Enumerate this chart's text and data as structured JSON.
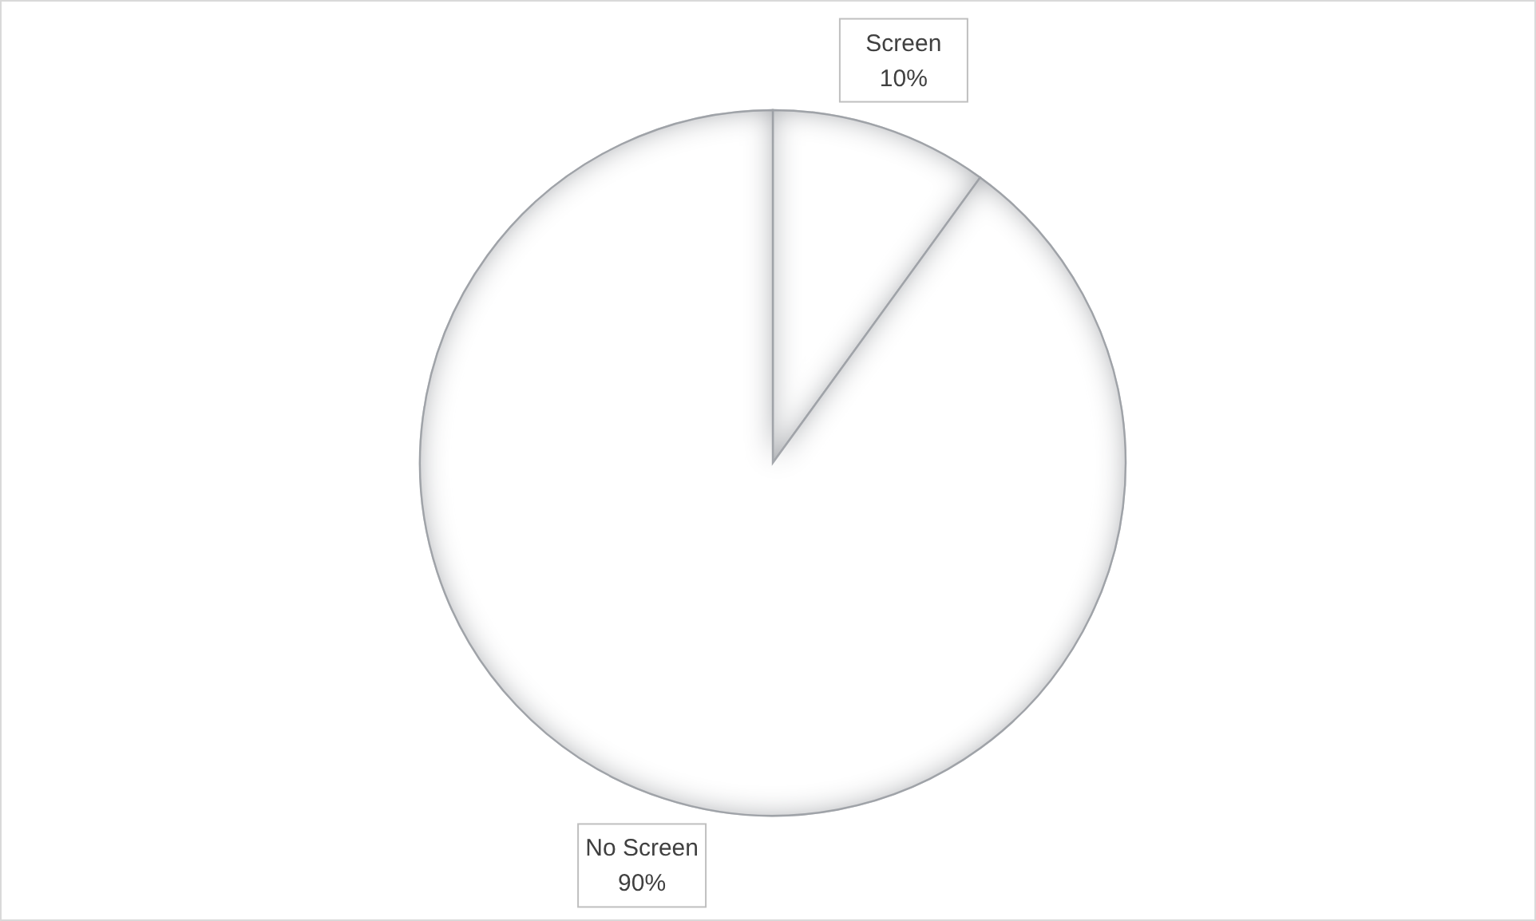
{
  "chart_data": {
    "type": "pie",
    "categories": [
      "Screen",
      "No Screen"
    ],
    "values": [
      10,
      90
    ],
    "colors": [
      "#ffffff",
      "#ffffff"
    ],
    "value_labels": [
      "10%",
      "90%"
    ]
  }
}
